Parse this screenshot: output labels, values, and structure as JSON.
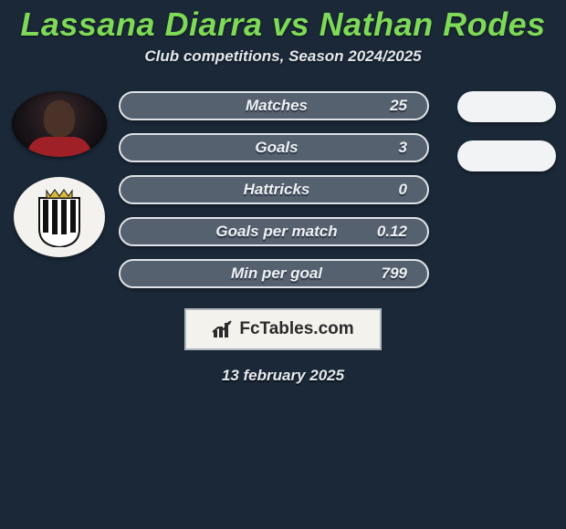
{
  "title": "Lassana Diarra vs Nathan Rodes",
  "subtitle": "Club competitions, Season 2024/2025",
  "colors": {
    "background": "#1a2838",
    "title": "#7ed957",
    "subtitle": "#e5e8ec",
    "pill_bg": "#55616f",
    "pill_border": "#dfe3e8",
    "text": "#eef1f4",
    "text_shadow": "#2a3442",
    "blank_pill": "#f2f3f4",
    "brand_bg": "#f4f2ec",
    "brand_border": "#b0b6be",
    "brand_text": "#2a2a2a"
  },
  "typography": {
    "title_size": 36,
    "subtitle_size": 17,
    "stat_size": 17,
    "brand_size": 19,
    "date_size": 17
  },
  "player1": {
    "name": "Lassana Diarra",
    "avatar_desc": "photo"
  },
  "player2": {
    "name": "Nathan Rodes",
    "crest_desc": "R.C.S.C. black-and-white striped shield with crown"
  },
  "stats": [
    {
      "label": "Matches",
      "value": "25"
    },
    {
      "label": "Goals",
      "value": "3"
    },
    {
      "label": "Hattricks",
      "value": "0"
    },
    {
      "label": "Goals per match",
      "value": "0.12"
    },
    {
      "label": "Min per goal",
      "value": "799"
    }
  ],
  "right_blanks": 2,
  "brand": "FcTables.com",
  "date": "13 february 2025"
}
